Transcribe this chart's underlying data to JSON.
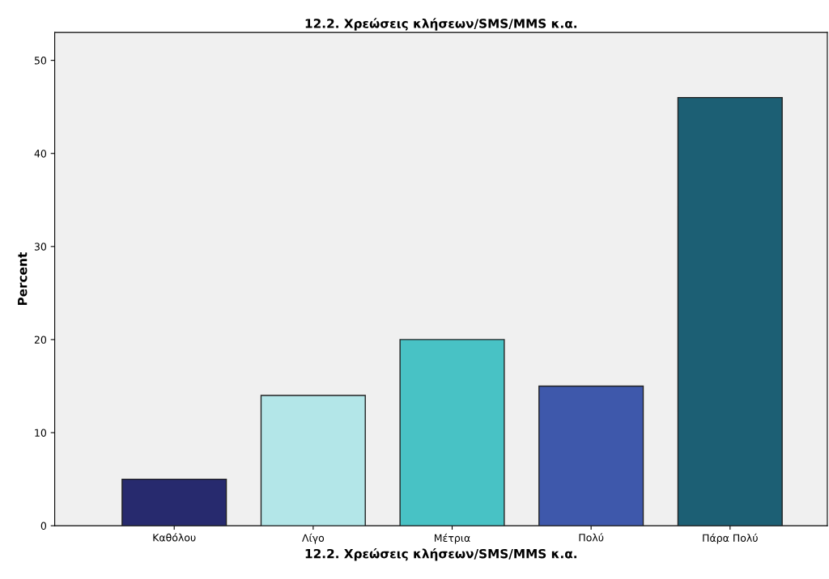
{
  "chart_data": {
    "type": "bar",
    "title": "12.2. Χρεώσεις κλήσεων/SMS/MMS κ.α.",
    "xlabel": "12.2. Χρεώσεις κλήσεων/SMS/MMS κ.α.",
    "ylabel": "Percent",
    "categories": [
      "Καθόλου",
      "Λίγο",
      "Μέτρια",
      "Πολύ",
      "Πάρα Πολύ"
    ],
    "values": [
      5,
      14,
      20,
      15,
      46
    ],
    "colors": [
      "#272a6e",
      "#b3e6e8",
      "#48c2c5",
      "#3e58ab",
      "#1c5f74"
    ],
    "ylim": [
      0,
      53
    ],
    "yticks": [
      0,
      10,
      20,
      30,
      40,
      50
    ],
    "grid": false
  }
}
